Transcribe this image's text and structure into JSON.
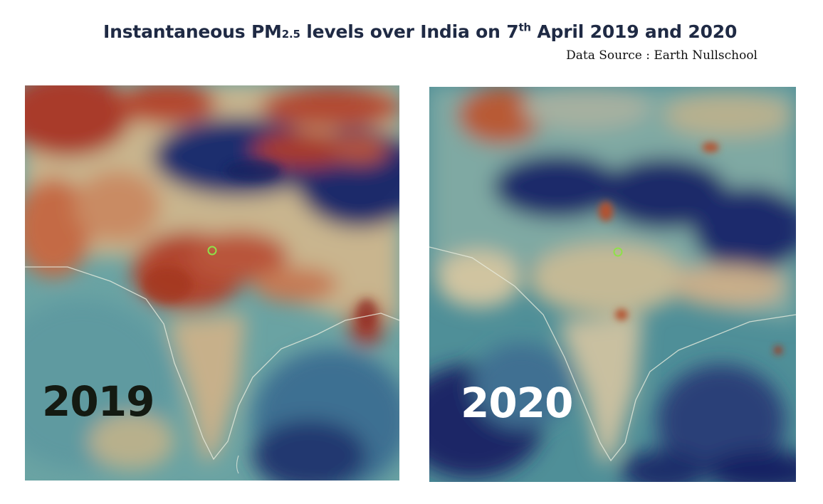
{
  "title": {
    "prefix": "Instantaneous ",
    "pm": "PM",
    "pm_sub": "2.5",
    "middle": " levels over India on 7",
    "sup": "th",
    "suffix": " April 2019 and 2020"
  },
  "source": "Data Source : Earth Nullschool",
  "maps": [
    {
      "year": "2019",
      "palette": {
        "high": "#a8372a",
        "mid": "#d9c7a0",
        "low": "#1b2a6b",
        "base": "#5f9ea4"
      }
    },
    {
      "year": "2020",
      "palette": {
        "high": "#b4512e",
        "mid": "#cfc8a6",
        "low": "#172363",
        "base": "#4f8f98"
      }
    }
  ],
  "marker_color": "#8fe04a"
}
